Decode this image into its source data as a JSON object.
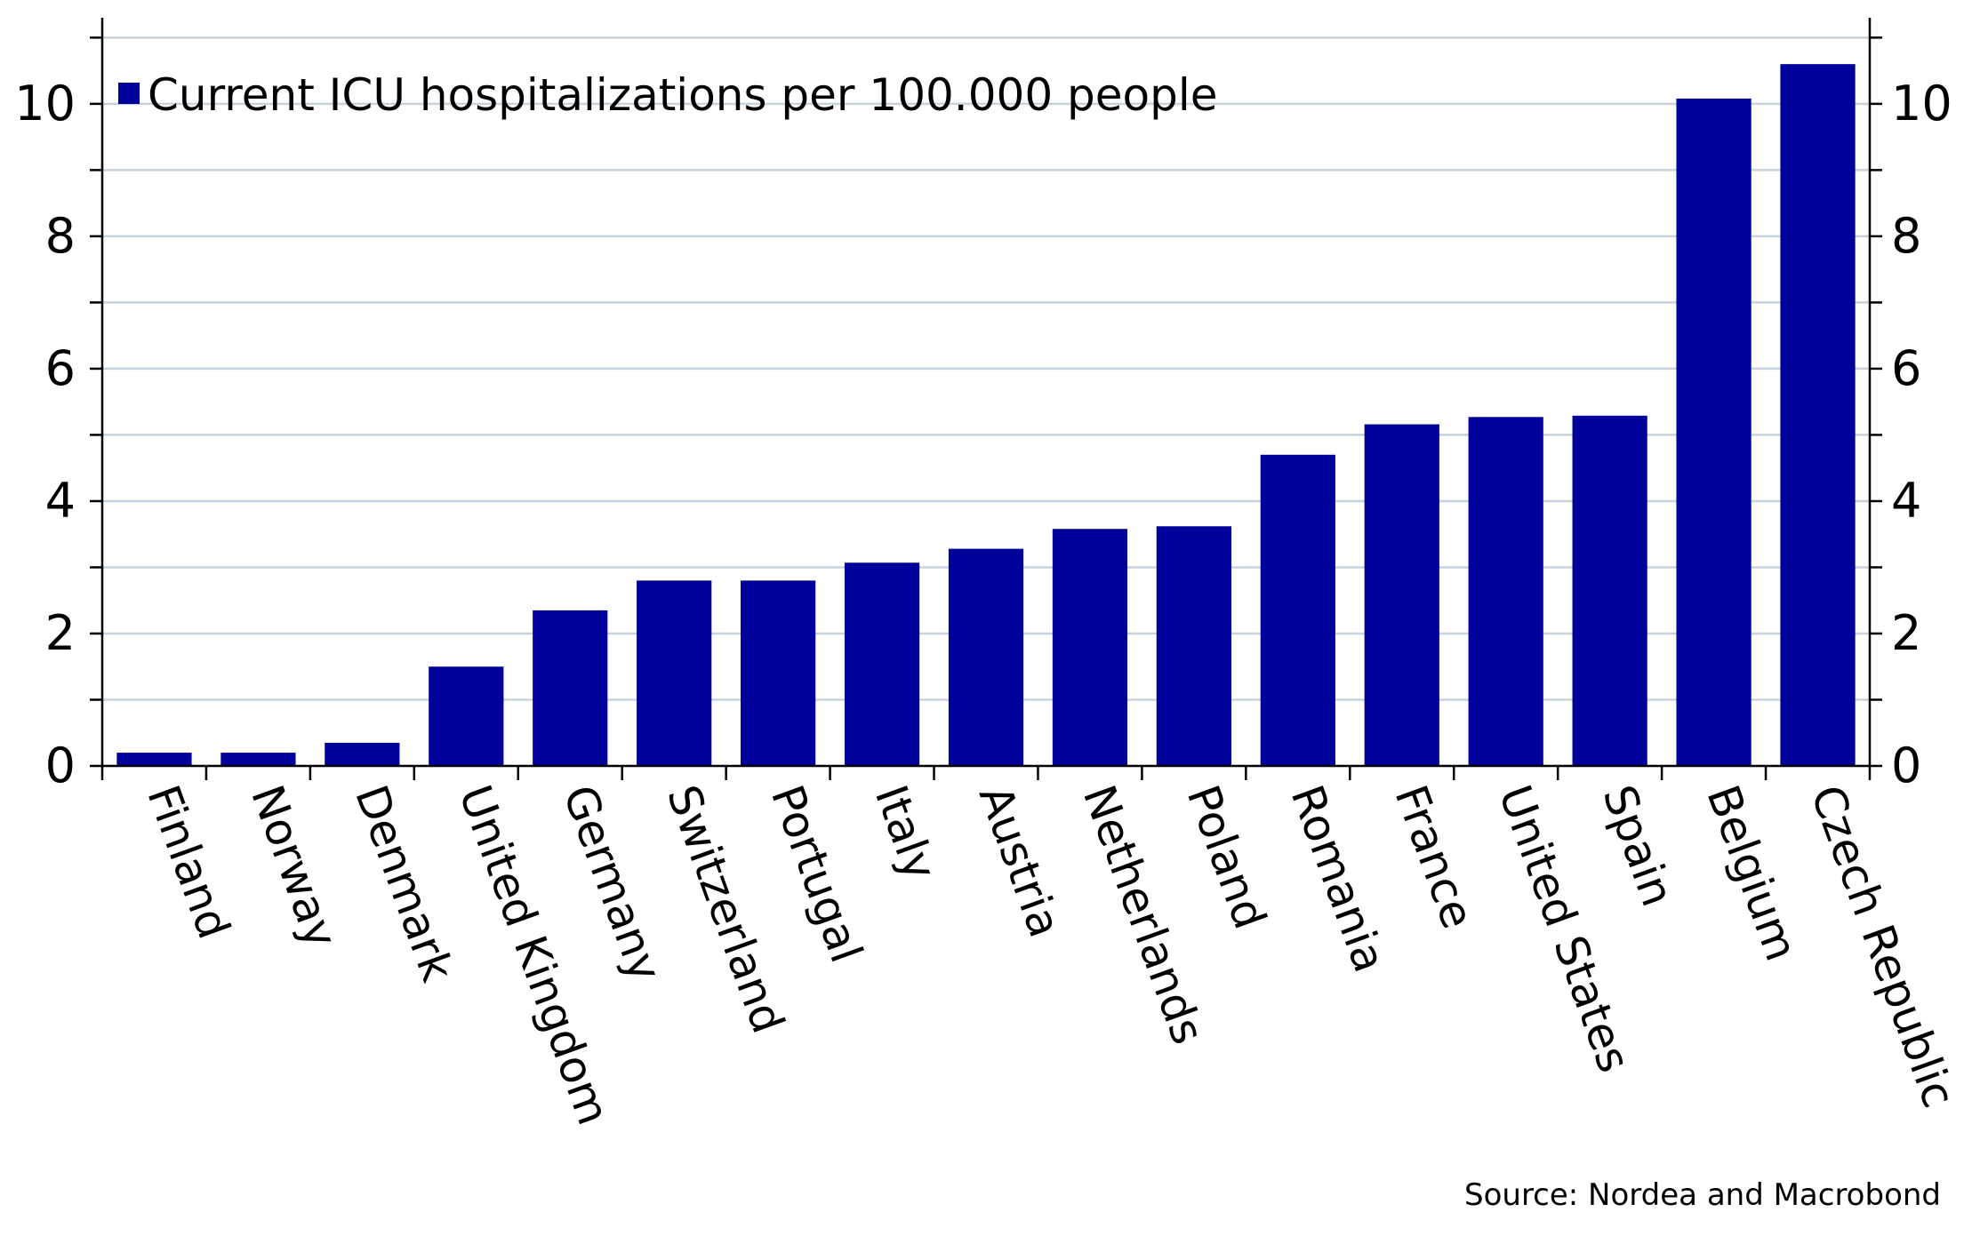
{
  "chart_data": {
    "type": "bar",
    "categories": [
      "Finland",
      "Norway",
      "Denmark",
      "United Kingdom",
      "Germany",
      "Switzerland",
      "Portugal",
      "Italy",
      "Austria",
      "Netherlands",
      "Poland",
      "Romania",
      "France",
      "United States",
      "Spain",
      "Belgium",
      "Czech Republic"
    ],
    "series": [
      {
        "name": "Current ICU hospitalizations per 100.000 people",
        "values": [
          0.2,
          0.2,
          0.35,
          1.5,
          2.35,
          2.8,
          2.8,
          3.07,
          3.28,
          3.58,
          3.62,
          4.7,
          5.16,
          5.27,
          5.29,
          10.08,
          10.6
        ],
        "color": "#00009b"
      }
    ],
    "ylim": [
      0,
      11.3
    ],
    "yticks": [
      "0",
      "2",
      "4",
      "6",
      "8",
      "10"
    ],
    "grid": true,
    "gridline_color": "#c8d2dc",
    "legend_position": "top-left",
    "source": "Source: Nordea and Macrobond"
  }
}
